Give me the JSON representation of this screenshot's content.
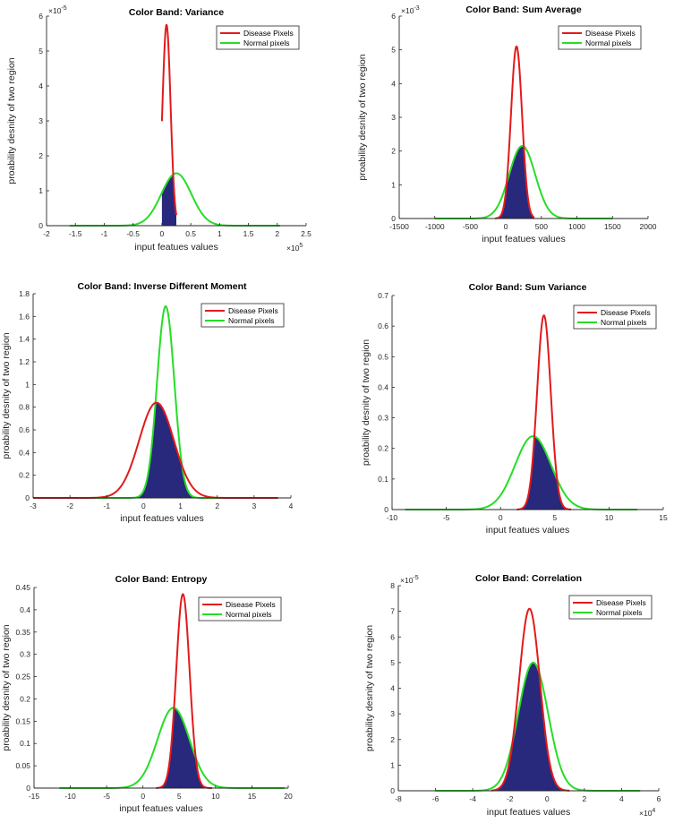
{
  "colors": {
    "disease": "#e31a1c",
    "normal": "#26dd26",
    "overlap": "#28287c",
    "axis": "#262626",
    "legend_border": "#262626"
  },
  "chart_data": [
    {
      "type": "line",
      "title": "Color Band: Variance",
      "xlabel": "input featues values",
      "ylabel": "proability desnity of two region",
      "xlim": [
        -2,
        2.5
      ],
      "ylim": [
        0,
        6
      ],
      "xticks": [
        -2,
        -1.5,
        -1,
        -0.5,
        0,
        0.5,
        1,
        1.5,
        2,
        2.5
      ],
      "xtick_labels": [
        "-2",
        "-1.5",
        "-1",
        "-0.5",
        "0",
        "0.5",
        "1",
        "1.5",
        "2",
        "2.5"
      ],
      "yticks": [
        0,
        1,
        2,
        3,
        4,
        5,
        6
      ],
      "ytick_labels": [
        "0",
        "1",
        "2",
        "3",
        "4",
        "5",
        "6"
      ],
      "x_exponent": "×10",
      "x_exponent_power": "5",
      "y_exponent": "×10",
      "y_exponent_power": "-5",
      "legend": [
        "Disease Pixels",
        "Normal pixels"
      ],
      "legend_position": "top-right",
      "series": [
        {
          "name": "Disease Pixels",
          "mu": 0.08,
          "sigma": 0.07,
          "x_range": [
            0.0,
            0.25
          ]
        },
        {
          "name": "Normal pixels",
          "mu": 0.25,
          "sigma": 0.26,
          "x_range": [
            -1.6,
            2.05
          ]
        }
      ]
    },
    {
      "type": "line",
      "title": "Color Band: Sum Average",
      "xlabel": "input featues values",
      "ylabel": "proability desnity of two region",
      "xlim": [
        -1500,
        2000
      ],
      "ylim": [
        0,
        6
      ],
      "xticks": [
        -1500,
        -1000,
        -500,
        0,
        500,
        1000,
        1500,
        2000
      ],
      "xtick_labels": [
        "-1500",
        "-1000",
        "-500",
        "0",
        "500",
        "1000",
        "1500",
        "2000"
      ],
      "yticks": [
        0,
        1,
        2,
        3,
        4,
        5,
        6
      ],
      "ytick_labels": [
        "0",
        "1",
        "2",
        "3",
        "4",
        "5",
        "6"
      ],
      "y_exponent": "×10",
      "y_exponent_power": "-3",
      "legend": [
        "Disease Pixels",
        "Normal pixels"
      ],
      "legend_position": "top-right",
      "series": [
        {
          "name": "Disease Pixels",
          "mu": 150,
          "sigma": 78,
          "x_range": [
            -150,
            400
          ]
        },
        {
          "name": "Normal pixels",
          "mu": 230,
          "sigma": 183,
          "x_range": [
            -1000,
            1500
          ]
        }
      ]
    },
    {
      "type": "line",
      "title": "Color Band: Inverse Different Moment",
      "xlabel": "input featues values",
      "ylabel": "proability desnity of two region",
      "xlim": [
        -3,
        4
      ],
      "ylim": [
        0,
        1.8
      ],
      "xticks": [
        -3,
        -2,
        -1,
        0,
        1,
        2,
        3,
        4
      ],
      "xtick_labels": [
        "-3",
        "-2",
        "-1",
        "0",
        "1",
        "2",
        "3",
        "4"
      ],
      "yticks": [
        0,
        0.2,
        0.4,
        0.6,
        0.8,
        1,
        1.2,
        1.4,
        1.6,
        1.8
      ],
      "ytick_labels": [
        "0",
        "0.2",
        "0.4",
        "0.6",
        "0.8",
        "1",
        "1.2",
        "1.4",
        "1.6",
        "1.8"
      ],
      "legend": [
        "Disease Pixels",
        "Normal pixels"
      ],
      "legend_position": "top-right",
      "series": [
        {
          "name": "Disease Pixels",
          "mu": 0.35,
          "sigma": 0.47,
          "x_range": [
            -3,
            3.65
          ]
        },
        {
          "name": "Normal pixels",
          "mu": 0.6,
          "sigma": 0.235,
          "x_range": [
            -3,
            3.65
          ]
        }
      ]
    },
    {
      "type": "line",
      "title": "Color Band: Sum Variance",
      "xlabel": "input featues values",
      "ylabel": "proability desnity of two region",
      "xlim": [
        -10,
        15
      ],
      "ylim": [
        0,
        0.7
      ],
      "xticks": [
        -10,
        -5,
        0,
        5,
        10,
        15
      ],
      "xtick_labels": [
        "-10",
        "-5",
        "0",
        "5",
        "10",
        "15"
      ],
      "yticks": [
        0,
        0.1,
        0.2,
        0.3,
        0.4,
        0.5,
        0.6,
        0.7
      ],
      "ytick_labels": [
        "0",
        "0.1",
        "0.2",
        "0.3",
        "0.4",
        "0.5",
        "0.6",
        "0.7"
      ],
      "legend": [
        "Disease Pixels",
        "Normal pixels"
      ],
      "legend_position": "top-right",
      "series": [
        {
          "name": "Disease Pixels",
          "mu": 4.0,
          "sigma": 0.63,
          "x_range": [
            1.5,
            6.5
          ]
        },
        {
          "name": "Normal pixels",
          "mu": 3.0,
          "sigma": 1.66,
          "x_range": [
            -8.8,
            12.6
          ]
        }
      ]
    },
    {
      "type": "line",
      "title": "Color Band: Entropy",
      "xlabel": "input featues values",
      "ylabel": "proability desnity of two region",
      "xlim": [
        -15,
        20
      ],
      "ylim": [
        0,
        0.45
      ],
      "xticks": [
        -15,
        -10,
        -5,
        0,
        5,
        10,
        15,
        20
      ],
      "xtick_labels": [
        "-15",
        "-10",
        "-5",
        "0",
        "5",
        "10",
        "15",
        "20"
      ],
      "yticks": [
        0,
        0.05,
        0.1,
        0.15,
        0.2,
        0.25,
        0.3,
        0.35,
        0.4,
        0.45
      ],
      "ytick_labels": [
        "0",
        "0.05",
        "0.1",
        "0.15",
        "0.2",
        "0.25",
        "0.3",
        "0.35",
        "0.4",
        "0.45"
      ],
      "legend": [
        "Disease Pixels",
        "Normal pixels"
      ],
      "legend_position": "top-right",
      "series": [
        {
          "name": "Disease Pixels",
          "mu": 5.5,
          "sigma": 0.92,
          "x_range": [
            1.8,
            9.5
          ]
        },
        {
          "name": "Normal pixels",
          "mu": 4.2,
          "sigma": 2.2,
          "x_range": [
            -11.5,
            19.5
          ]
        }
      ]
    },
    {
      "type": "line",
      "title": "Color Band: Correlation",
      "xlabel": "input featues values",
      "ylabel": "proability desnity of two region",
      "xlim": [
        -8,
        6
      ],
      "ylim": [
        0,
        8
      ],
      "xticks": [
        -8,
        -6,
        -4,
        -2,
        0,
        2,
        4,
        6
      ],
      "xtick_labels": [
        "-8",
        "-6",
        "-4",
        "-2",
        "0",
        "2",
        "4",
        "6"
      ],
      "yticks": [
        0,
        1,
        2,
        3,
        4,
        5,
        6,
        7,
        8
      ],
      "ytick_labels": [
        "0",
        "1",
        "2",
        "3",
        "4",
        "5",
        "6",
        "7",
        "8"
      ],
      "x_exponent": "×10",
      "x_exponent_power": "4",
      "y_exponent": "×10",
      "y_exponent_power": "-5",
      "legend": [
        "Disease Pixels",
        "Normal pixels"
      ],
      "legend_position": "top-right",
      "series": [
        {
          "name": "Disease Pixels",
          "mu": -0.95,
          "sigma": 0.56,
          "x_range": [
            -3.0,
            1.2
          ]
        },
        {
          "name": "Normal pixels",
          "mu": -0.75,
          "sigma": 0.8,
          "x_range": [
            -6,
            5
          ]
        }
      ]
    }
  ]
}
